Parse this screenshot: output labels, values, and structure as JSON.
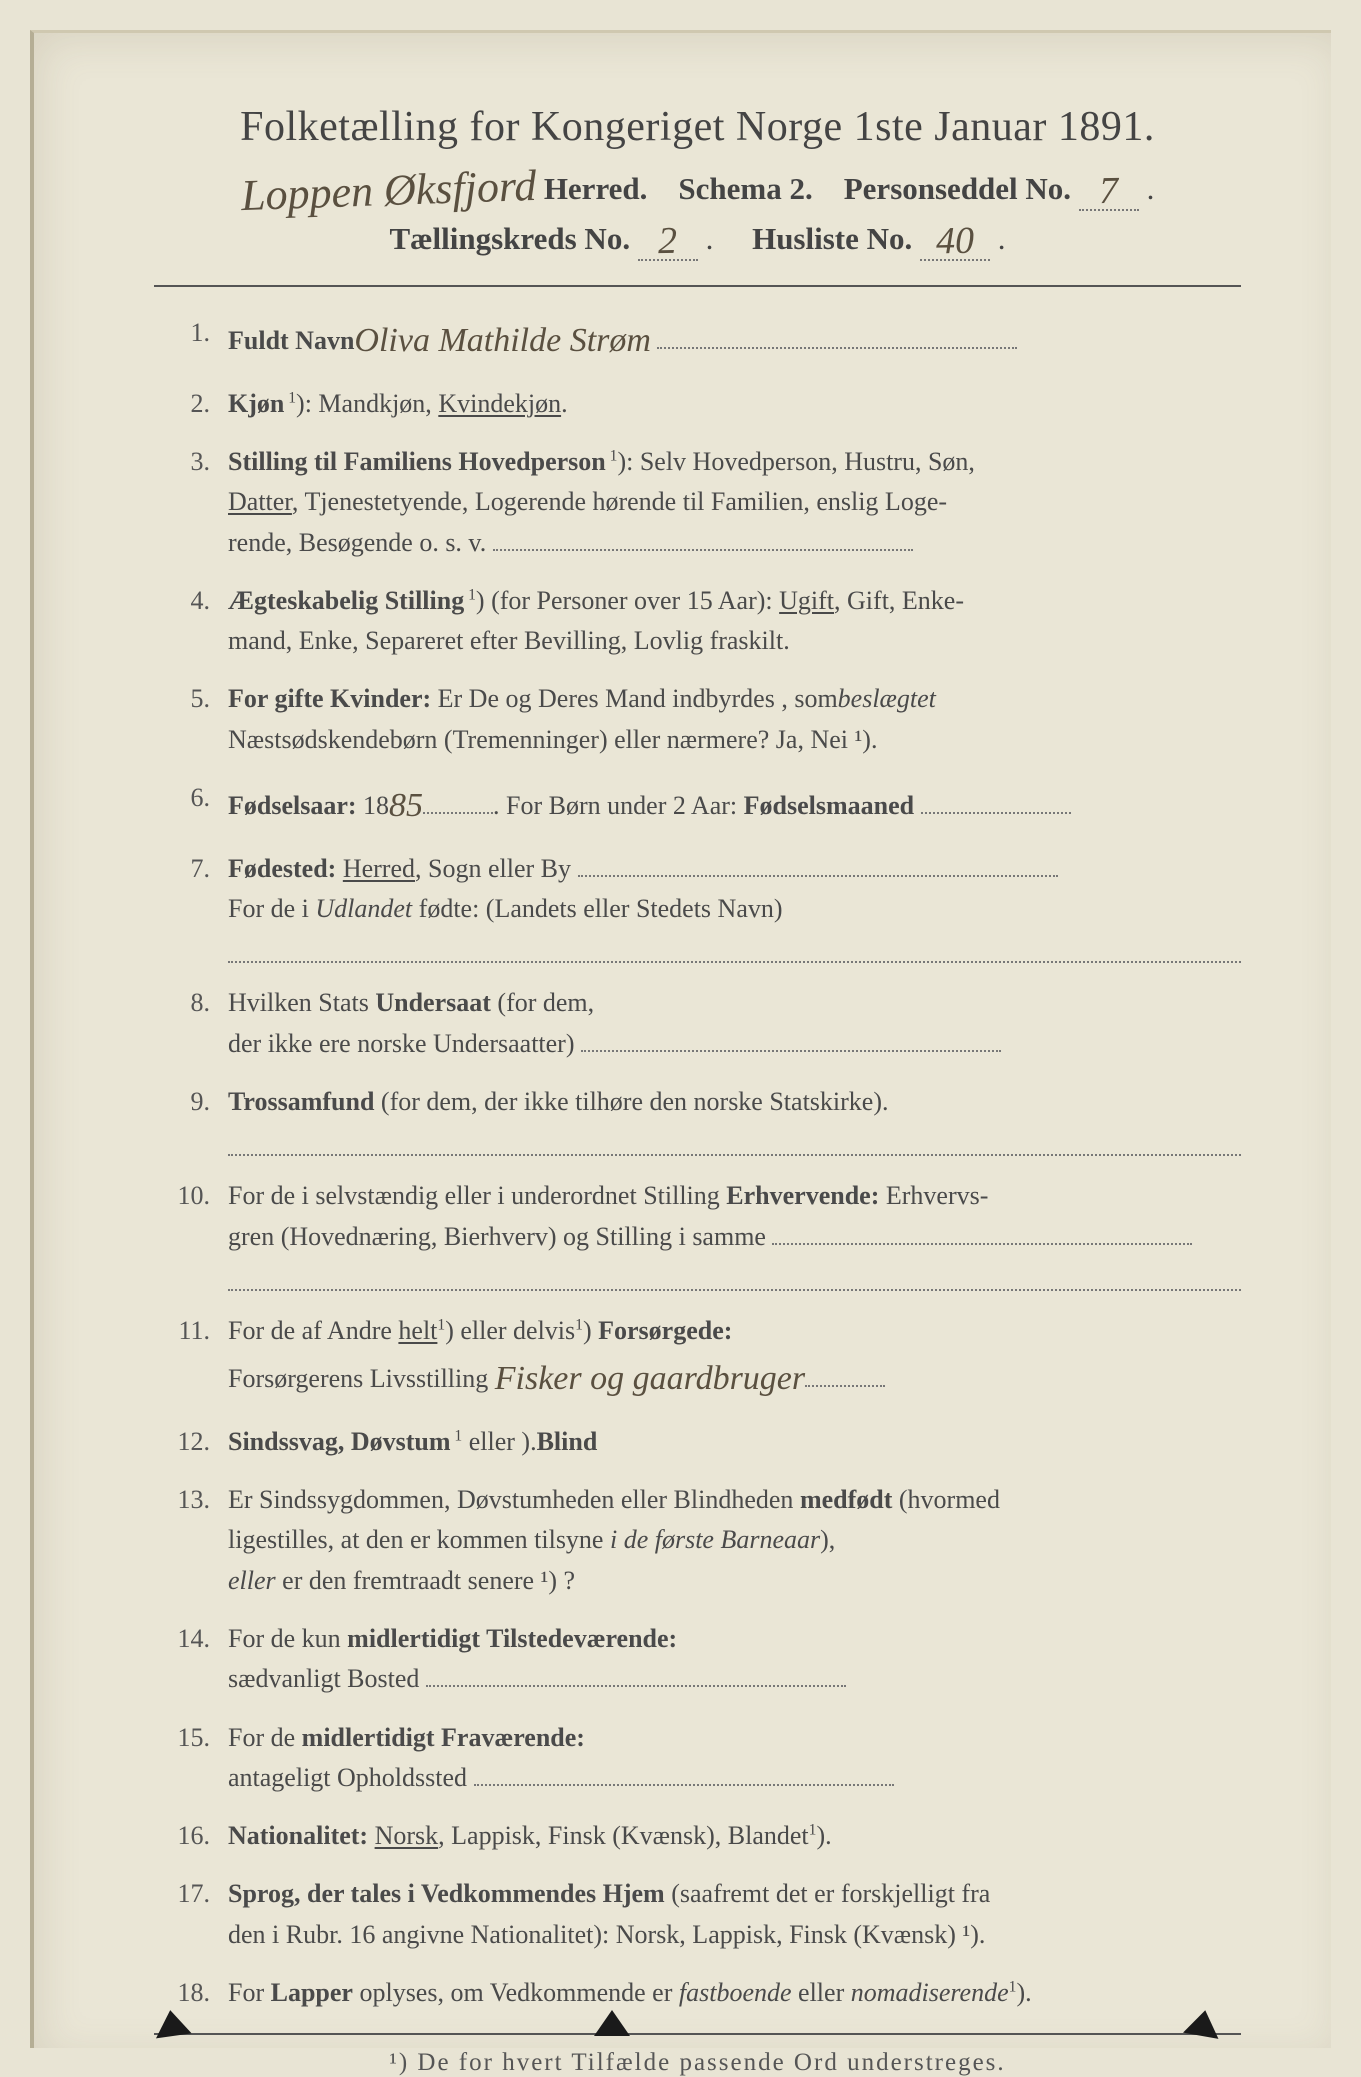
{
  "colors": {
    "paper_bg": "#eae6d6",
    "outer_bg": "#e8e4d4",
    "ink": "#3a3a3a",
    "rule": "#555555",
    "handwriting": "#5a5040",
    "dotted": "#777777"
  },
  "typography": {
    "title_fontsize_pt": 42,
    "sub_fontsize_pt": 31,
    "body_fontsize_pt": 26,
    "footnote_fontsize_pt": 25,
    "hand_font": "Brush Script MT"
  },
  "header": {
    "title": "Folketælling for Kongeriget Norge 1ste Januar 1891.",
    "line2": {
      "herred_hand": "Loppen Øksfjord",
      "herred_label": "Herred.",
      "schema_label": "Schema 2.",
      "person_label": "Personseddel No.",
      "person_no_hand": "7",
      "period": "."
    },
    "line3": {
      "kreds_label": "Tællingskreds No.",
      "kreds_no_hand": "2",
      "sep": ".",
      "husliste_label": "Husliste No.",
      "husliste_no_hand": "40",
      "period2": "."
    }
  },
  "entries": [
    {
      "n": "1.",
      "label": "Fuldt Navn",
      "hand": "Oliva Mathilde Strøm",
      "trail_dots": true
    },
    {
      "n": "2.",
      "label": "Kjøn",
      "sup": "1",
      "rest": "): Mandkjøn, ",
      "ul": "Kvindekjøn",
      "tail": "."
    },
    {
      "n": "3.",
      "label": "Stilling til Familiens Hovedperson",
      "sup": "1",
      "rest": "): Selv Hovedperson, Hustru, Søn,",
      "cont": [
        "Datter, Tjenestetyende, Logerende hørende til Familien, enslig Loge-",
        "rende, Besøgende o. s. v."
      ],
      "cont_ul_first_word": "Datter",
      "cont_trail_dots": true
    },
    {
      "n": "4.",
      "label": "Ægteskabelig Stilling",
      "sup": "1",
      "rest": ") (for Personer over 15 Aar): ",
      "ul": "Ugift",
      "tail": ", Gift, Enke-",
      "cont": [
        "mand, Enke, Separeret efter Bevilling, Lovlig fraskilt."
      ]
    },
    {
      "n": "5.",
      "label": "For gifte Kvinder:",
      "rest": " Er De og Deres Mand indbyrdes ",
      "i1": "beslægtet",
      "tail": ", som",
      "cont": [
        "Næstsødskendebørn (Tremenninger) eller nærmere?  Ja, Nei ¹)."
      ]
    },
    {
      "n": "6.",
      "label": "Fødselsaar:",
      "rest": " 18",
      "hand": "85",
      "mid_dots_w": 70,
      "tail": ".  For Børn under 2 Aar: ",
      "label2": "Fødselsmaaned",
      "trail_dots": true
    },
    {
      "n": "7.",
      "label": "Fødested:",
      "rest": " ",
      "ul": "Herred",
      "tail": ", Sogn eller By ",
      "trail_dots": true,
      "cont": [
        "For de i Udlandet fødte: (Landets eller Stedets Navn)"
      ],
      "cont_italic_word": "Udlandet",
      "extra_dotline": true
    },
    {
      "n": "8.",
      "rest": "Hvilken Stats ",
      "label": "Undersaat",
      "tail": " (for dem,",
      "cont": [
        "der ikke ere norske Undersaatter)"
      ],
      "cont_trail_dots": true
    },
    {
      "n": "9.",
      "label": "Trossamfund",
      "rest": " (for dem, der ikke tilhøre den norske Statskirke).",
      "extra_dotline": true
    },
    {
      "n": "10.",
      "rest": "For de i selvstændig eller i underordnet Stilling ",
      "label": "Erhvervende:",
      "tail": " Erhvervs-",
      "cont": [
        "gren (Hovednæring, Bierhverv) og Stilling i samme"
      ],
      "cont_trail_dots": true,
      "extra_dotline": true
    },
    {
      "n": "11.",
      "rest": "For de af Andre ",
      "ul": "helt",
      "sup_after_ul": "1",
      "mid": ") eller delvis",
      "sup2": "1",
      "tail2": ") ",
      "label": "Forsørgede:",
      "cont_label": "Forsørgerens Livsstilling",
      "cont_hand": "Fisker og gaardbruger",
      "cont_trail_dots": true
    },
    {
      "n": "12.",
      "label": "Sindssvag, Døvstum",
      "rest": " eller ",
      "label2": "Blind",
      "sup": "1",
      "tail": ")."
    },
    {
      "n": "13.",
      "rest": "Er Sindssygdommen, Døvstumheden eller Blindheden ",
      "label": "medfødt",
      "tail": " (hvormed",
      "cont": [
        "ligestilles, at den er kommen tilsyne i de første Barneaar),",
        "eller er den fremtraadt senere ¹) ?"
      ],
      "cont_italic_phrase": "i de første Barneaar",
      "cont_italic_word2": "eller"
    },
    {
      "n": "14.",
      "rest": "For de kun ",
      "label": "midlertidigt Tilstedeværende:",
      "cont": [
        "sædvanligt Bosted"
      ],
      "cont_trail_dots": true
    },
    {
      "n": "15.",
      "rest": "For de ",
      "label": "midlertidigt Fraværende:",
      "cont": [
        "antageligt Opholdssted"
      ],
      "cont_trail_dots": true
    },
    {
      "n": "16.",
      "label": "Nationalitet:",
      "rest": " ",
      "ul": "Norsk",
      "tail": ", Lappisk, Finsk (Kvænsk), Blandet",
      "sup_tail": "1",
      "tail2": ")."
    },
    {
      "n": "17.",
      "label": "Sprog, der tales i Vedkommendes Hjem",
      "rest": " (saafremt det er forskjelligt fra",
      "cont": [
        "den i Rubr. 16 angivne Nationalitet): Norsk, Lappisk, Finsk (Kvænsk) ¹)."
      ]
    },
    {
      "n": "18.",
      "rest": "For ",
      "label": "Lapper",
      "tail": " oplyses, om Vedkommende er ",
      "i1": "fastboende",
      "mid": " eller ",
      "i2": "nomadiserende",
      "sup_tail": "1",
      "tail2": ")."
    }
  ],
  "footnote": "¹) De for hvert Tilfælde passende Ord understreges."
}
